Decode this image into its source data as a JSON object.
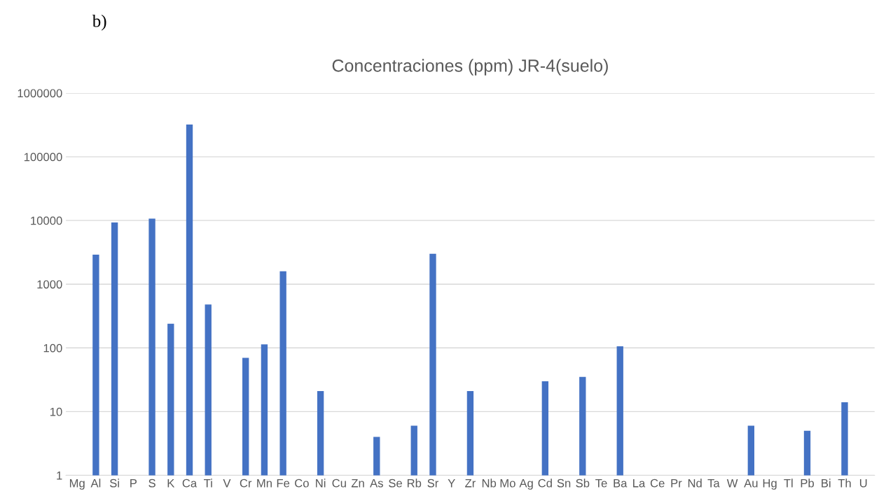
{
  "chart_data": {
    "type": "bar",
    "title": "Concentraciones (ppm) JR-4(suelo)",
    "annotations": [
      "b)"
    ],
    "categories": [
      "Mg",
      "Al",
      "Si",
      "P",
      "S",
      "K",
      "Ca",
      "Ti",
      "V",
      "Cr",
      "Mn",
      "Fe",
      "Co",
      "Ni",
      "Cu",
      "Zn",
      "As",
      "Se",
      "Rb",
      "Sr",
      "Y",
      "Zr",
      "Nb",
      "Mo",
      "Ag",
      "Cd",
      "Sn",
      "Sb",
      "Te",
      "Ba",
      "La",
      "Ce",
      "Pr",
      "Nd",
      "Ta",
      "W",
      "Au",
      "Hg",
      "Tl",
      "Pb",
      "Bi",
      "Th",
      "U"
    ],
    "values": [
      null,
      2900,
      9300,
      null,
      10700,
      240,
      320000,
      480,
      null,
      70,
      114,
      1600,
      null,
      21,
      null,
      null,
      4,
      null,
      6,
      3000,
      null,
      21,
      null,
      null,
      null,
      30,
      null,
      35,
      null,
      106,
      null,
      null,
      null,
      null,
      null,
      null,
      6,
      null,
      null,
      5,
      null,
      14,
      null
    ],
    "color": "#4472c4",
    "log": true,
    "ylim": [
      1,
      1000000
    ],
    "yticks": [
      1,
      10,
      100,
      1000,
      10000,
      100000,
      1000000
    ],
    "grid": "y",
    "legend": false
  }
}
